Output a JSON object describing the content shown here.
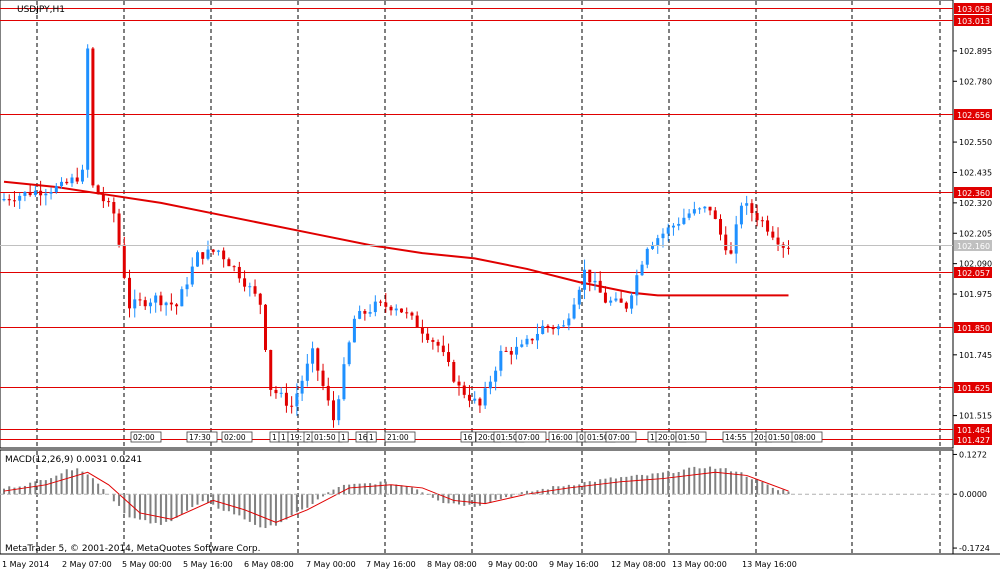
{
  "chart_data": {
    "type": "candlestick",
    "symbol_label": "USDJPY,H1",
    "macd_label": "MACD(12,26,9) 0.0031 0.0241",
    "copyright": "MetaTrader 5, © 2001-2014, MetaQuotes Software Corp.",
    "price_axis": {
      "ylim": [
        101.4,
        103.08
      ],
      "ticks": [
        "102.895",
        "102.780",
        "102.550",
        "102.435",
        "102.320",
        "102.205",
        "102.090",
        "101.975",
        "101.745",
        "101.515"
      ]
    },
    "macd_axis": {
      "ylim": [
        -0.185,
        0.135
      ],
      "ticks": [
        "0.1272",
        "0.0000",
        "-0.1724"
      ]
    },
    "current_price": "102.160",
    "time_labels": [
      "1 May 2014",
      "2 May 07:00",
      "5 May 00:00",
      "5 May 16:00",
      "6 May 08:00",
      "7 May 00:00",
      "7 May 16:00",
      "8 May 08:00",
      "9 May 00:00",
      "9 May 16:00",
      "12 May 08:00",
      "13 May 00:00",
      "13 May 16:00"
    ],
    "levels": [
      {
        "value": 103.058,
        "label": "103.058"
      },
      {
        "value": 103.013,
        "label": "103.013"
      },
      {
        "value": 102.656,
        "label": "102.656"
      },
      {
        "value": 102.36,
        "label": "102.360"
      },
      {
        "value": 102.057,
        "label": "102.057"
      },
      {
        "value": 101.85,
        "label": "101.850"
      },
      {
        "value": 101.625,
        "label": "101.625"
      },
      {
        "value": 101.464,
        "label": "101.464"
      },
      {
        "value": 101.427,
        "label": "101.427"
      }
    ],
    "event_labels": [
      "02:00",
      "17:30",
      "02:00",
      "1",
      "1",
      "19:",
      "2",
      "01:50",
      "1",
      "16",
      "1",
      "21:00",
      "16",
      "20:0",
      "01:50",
      "07:00",
      "16:00",
      "0",
      "01:50",
      "07:00",
      "1",
      "20:00",
      "01:50",
      "14:55",
      "20:",
      "01:50",
      "08:00"
    ],
    "moving_average": [
      {
        "t": 0,
        "v": 102.4
      },
      {
        "t": 10,
        "v": 102.38
      },
      {
        "t": 20,
        "v": 102.35
      },
      {
        "t": 30,
        "v": 102.32
      },
      {
        "t": 40,
        "v": 102.28
      },
      {
        "t": 50,
        "v": 102.24
      },
      {
        "t": 60,
        "v": 102.2
      },
      {
        "t": 70,
        "v": 102.16
      },
      {
        "t": 80,
        "v": 102.13
      },
      {
        "t": 90,
        "v": 102.11
      },
      {
        "t": 100,
        "v": 102.07
      },
      {
        "t": 110,
        "v": 102.02
      },
      {
        "t": 120,
        "v": 101.98
      },
      {
        "t": 125,
        "v": 101.97
      },
      {
        "t": 133,
        "v": 101.97
      },
      {
        "t": 150,
        "v": 101.97
      }
    ],
    "macd_signal": [
      {
        "t": 0,
        "v": 0.01
      },
      {
        "t": 8,
        "v": 0.03
      },
      {
        "t": 16,
        "v": 0.07
      },
      {
        "t": 20,
        "v": 0.03
      },
      {
        "t": 26,
        "v": -0.06
      },
      {
        "t": 32,
        "v": -0.08
      },
      {
        "t": 40,
        "v": -0.02
      },
      {
        "t": 46,
        "v": -0.05
      },
      {
        "t": 52,
        "v": -0.09
      },
      {
        "t": 58,
        "v": -0.05
      },
      {
        "t": 66,
        "v": 0.02
      },
      {
        "t": 74,
        "v": 0.03
      },
      {
        "t": 80,
        "v": 0.02
      },
      {
        "t": 86,
        "v": -0.02
      },
      {
        "t": 92,
        "v": -0.03
      },
      {
        "t": 100,
        "v": 0.0
      },
      {
        "t": 108,
        "v": 0.02
      },
      {
        "t": 118,
        "v": 0.04
      },
      {
        "t": 126,
        "v": 0.05
      },
      {
        "t": 136,
        "v": 0.07
      },
      {
        "t": 142,
        "v": 0.06
      },
      {
        "t": 150,
        "v": 0.01
      }
    ]
  }
}
